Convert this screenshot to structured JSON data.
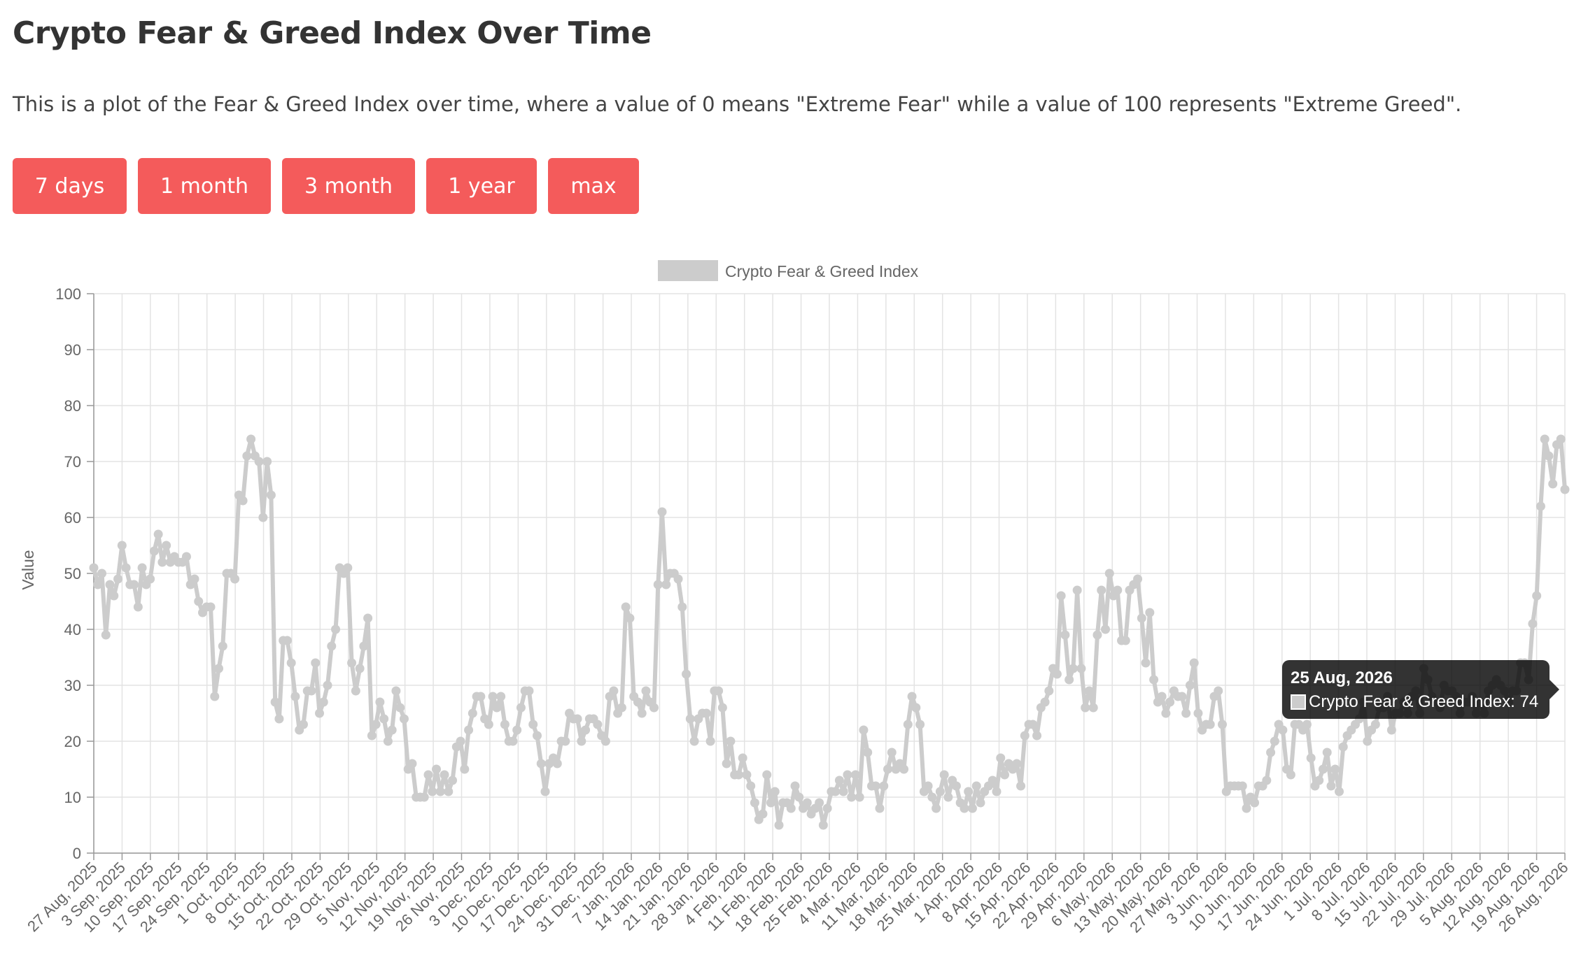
{
  "page": {
    "title": "Crypto Fear & Greed Index Over Time",
    "description": "This is a plot of the Fear & Greed Index over time, where a value of 0 means \"Extreme Fear\" while a value of 100 represents \"Extreme Greed\"."
  },
  "range_buttons": [
    {
      "label": "7 days"
    },
    {
      "label": "1 month"
    },
    {
      "label": "3 month"
    },
    {
      "label": "1 year"
    },
    {
      "label": "max"
    }
  ],
  "colors": {
    "button_bg": "#f45b5b",
    "button_text": "#ffffff",
    "series": "#cccccc",
    "grid": "#e3e3e3",
    "axis": "#999999",
    "tick_text": "#666666",
    "tooltip_bg": "#000000"
  },
  "tooltip": {
    "title": "25 Aug, 2026",
    "label": "Crypto Fear & Greed Index: 74",
    "value": 74
  },
  "chart_data": {
    "type": "line",
    "legend": {
      "position": "top",
      "entries": [
        "Crypto Fear & Greed Index"
      ]
    },
    "ylabel": "Value",
    "xlabel": "",
    "ylim": [
      0,
      100
    ],
    "yticks": [
      0,
      10,
      20,
      30,
      40,
      50,
      60,
      70,
      80,
      90,
      100
    ],
    "grid": true,
    "x_range": [
      "27 Aug, 2025",
      "26 Aug, 2026"
    ],
    "xticks": [
      "27 Aug, 2025",
      "3 Sep, 2025",
      "10 Sep, 2025",
      "17 Sep, 2025",
      "24 Sep, 2025",
      "1 Oct, 2025",
      "8 Oct, 2025",
      "15 Oct, 2025",
      "22 Oct, 2025",
      "29 Oct, 2025",
      "5 Nov, 2025",
      "12 Nov, 2025",
      "19 Nov, 2025",
      "26 Nov, 2025",
      "3 Dec, 2025",
      "10 Dec, 2025",
      "17 Dec, 2025",
      "24 Dec, 2025",
      "31 Dec, 2025",
      "7 Jan, 2026",
      "14 Jan, 2026",
      "21 Jan, 2026",
      "28 Jan, 2026",
      "4 Feb, 2026",
      "11 Feb, 2026",
      "18 Feb, 2026",
      "25 Feb, 2026",
      "4 Mar, 2026",
      "11 Mar, 2026",
      "18 Mar, 2026",
      "25 Mar, 2026",
      "1 Apr, 2026",
      "8 Apr, 2026",
      "15 Apr, 2026",
      "22 Apr, 2026",
      "29 Apr, 2026",
      "6 May, 2026",
      "13 May, 2026",
      "20 May, 2026",
      "27 May, 2026",
      "3 Jun, 2026",
      "10 Jun, 2026",
      "17 Jun, 2026",
      "24 Jun, 2026",
      "1 Jul, 2026",
      "8 Jul, 2026",
      "15 Jul, 2026",
      "22 Jul, 2026",
      "29 Jul, 2026",
      "5 Aug, 2026",
      "12 Aug, 2026",
      "19 Aug, 2026",
      "26 Aug, 2026"
    ],
    "series": [
      {
        "name": "Crypto Fear & Greed Index",
        "values": [
          51,
          48,
          50,
          39,
          48,
          46,
          49,
          55,
          51,
          48,
          48,
          44,
          51,
          48,
          49,
          54,
          57,
          52,
          55,
          52,
          53,
          52,
          52,
          53,
          48,
          49,
          45,
          43,
          44,
          44,
          28,
          33,
          37,
          50,
          50,
          49,
          64,
          63,
          71,
          74,
          71,
          70,
          60,
          70,
          64,
          27,
          24,
          38,
          38,
          34,
          28,
          22,
          23,
          29,
          29,
          34,
          25,
          27,
          30,
          37,
          40,
          51,
          50,
          51,
          34,
          29,
          33,
          37,
          42,
          21,
          23,
          27,
          24,
          20,
          22,
          29,
          26,
          24,
          15,
          16,
          10,
          10,
          10,
          14,
          11,
          15,
          11,
          14,
          11,
          13,
          19,
          20,
          15,
          22,
          25,
          28,
          28,
          24,
          23,
          28,
          26,
          28,
          23,
          20,
          20,
          22,
          26,
          29,
          29,
          23,
          21,
          16,
          11,
          16,
          17,
          16,
          20,
          20,
          25,
          24,
          24,
          20,
          22,
          24,
          24,
          23,
          21,
          20,
          28,
          29,
          25,
          26,
          44,
          42,
          28,
          27,
          25,
          29,
          27,
          26,
          48,
          61,
          48,
          50,
          50,
          49,
          44,
          32,
          24,
          20,
          24,
          25,
          25,
          20,
          29,
          29,
          26,
          16,
          20,
          14,
          14,
          17,
          14,
          12,
          9,
          6,
          7,
          14,
          9,
          11,
          5,
          9,
          9,
          8,
          12,
          10,
          8,
          9,
          7,
          8,
          9,
          5,
          8,
          11,
          11,
          13,
          11,
          14,
          10,
          14,
          10,
          22,
          18,
          12,
          12,
          8,
          12,
          15,
          18,
          15,
          16,
          15,
          23,
          28,
          26,
          23,
          11,
          12,
          10,
          8,
          11,
          14,
          10,
          13,
          12,
          9,
          8,
          11,
          8,
          12,
          9,
          11,
          12,
          13,
          11,
          17,
          14,
          16,
          15,
          16,
          12,
          21,
          23,
          23,
          21,
          26,
          27,
          29,
          33,
          32,
          46,
          39,
          31,
          33,
          47,
          33,
          26,
          29,
          26,
          39,
          47,
          40,
          50,
          46,
          47,
          38,
          38,
          47,
          48,
          49,
          42,
          34,
          43,
          31,
          27,
          28,
          25,
          27,
          29,
          28,
          28,
          25,
          30,
          34,
          25,
          22,
          23,
          23,
          28,
          29,
          23,
          11,
          12,
          12,
          12,
          12,
          8,
          10,
          9,
          12,
          12,
          13,
          18,
          20,
          23,
          22,
          15,
          14,
          23,
          23,
          22,
          23,
          17,
          12,
          13,
          15,
          18,
          12,
          15,
          11,
          19,
          21,
          22,
          23,
          24,
          27,
          20,
          22,
          23,
          26,
          26,
          28,
          22,
          25,
          25,
          27,
          25,
          28,
          29,
          25,
          33,
          31,
          28,
          27,
          26,
          30,
          29,
          29,
          28,
          25,
          27,
          27,
          28,
          25,
          27,
          25,
          29,
          30,
          31,
          30,
          29,
          27,
          29,
          29,
          34,
          34,
          31,
          41,
          46,
          62,
          74,
          71,
          66,
          73,
          74,
          65
        ]
      }
    ]
  }
}
